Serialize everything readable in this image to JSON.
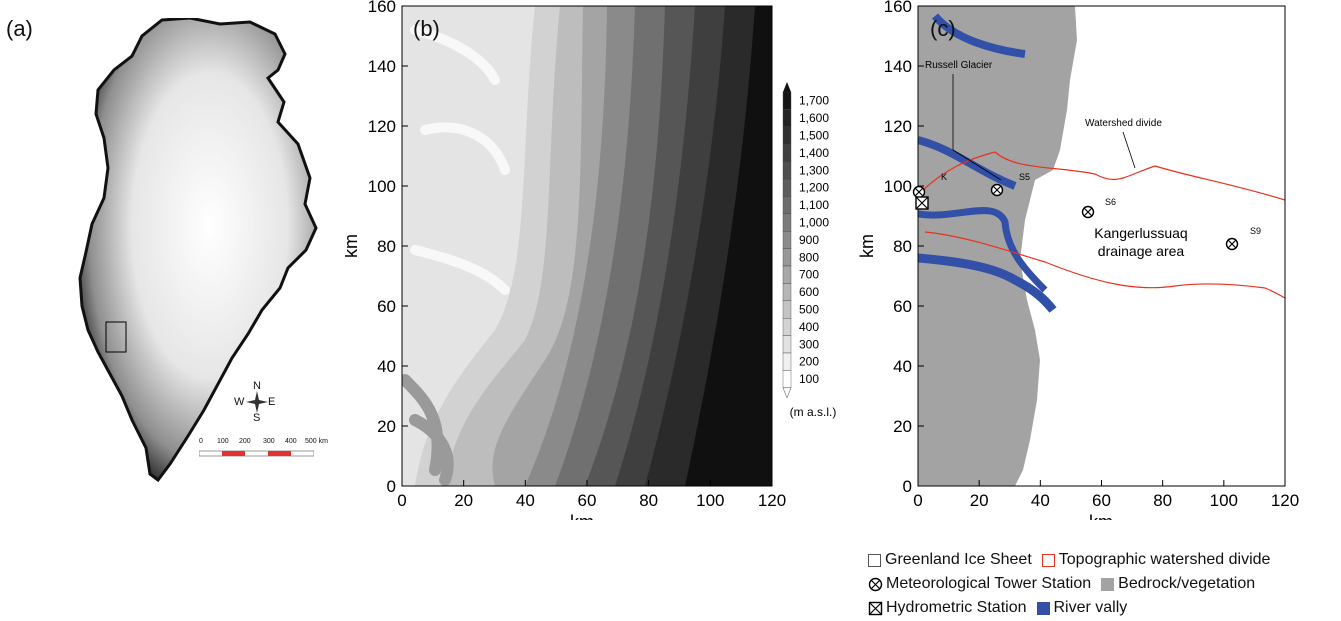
{
  "panels": {
    "a": {
      "label": "(a)",
      "compass": {
        "n": "N",
        "s": "S",
        "e": "E",
        "w": "W"
      },
      "scale": {
        "ticks": [
          "0",
          "100",
          "200",
          "300",
          "400",
          "500 km"
        ],
        "accent": "#e53030"
      }
    },
    "b": {
      "label": "(b)",
      "xlabel": "km",
      "ylabel": "km",
      "xticks": [
        "0",
        "20",
        "40",
        "60",
        "80",
        "100",
        "120"
      ],
      "yticks": [
        "0",
        "20",
        "40",
        "60",
        "80",
        "100",
        "120",
        "140",
        "160"
      ],
      "colorbar": {
        "labels": [
          "1,700",
          "1,600",
          "1,500",
          "1,400",
          "1,300",
          "1,200",
          "1,100",
          "1,000",
          "900",
          "800",
          "700",
          "600",
          "500",
          "400",
          "300",
          "200",
          "100"
        ],
        "unit": "(m a.s.l.)"
      }
    },
    "c": {
      "label": "(c)",
      "xlabel": "km",
      "ylabel": "km",
      "xticks": [
        "0",
        "20",
        "40",
        "60",
        "80",
        "100",
        "120"
      ],
      "yticks": [
        "0",
        "20",
        "40",
        "60",
        "80",
        "100",
        "120",
        "140",
        "160"
      ],
      "annotations": {
        "russell": "Russell Glacier",
        "watershed": "Watershed divide",
        "k": "K",
        "s5": "S5",
        "s6": "S6",
        "s9": "S9",
        "area_line1": "Kangerlussuaq",
        "area_line2": "drainage area"
      },
      "colors": {
        "bedrock": "#a3a3a3",
        "river": "#3350a8",
        "divide": "#e8321e"
      }
    }
  },
  "legend": {
    "ice_sheet": "Greenland Ice Sheet",
    "divide": "Topographic watershed divide",
    "met": "Meteorological Tower Station",
    "bedrock": "Bedrock/vegetation",
    "hydro": "Hydrometric Station",
    "river": "River vally"
  }
}
